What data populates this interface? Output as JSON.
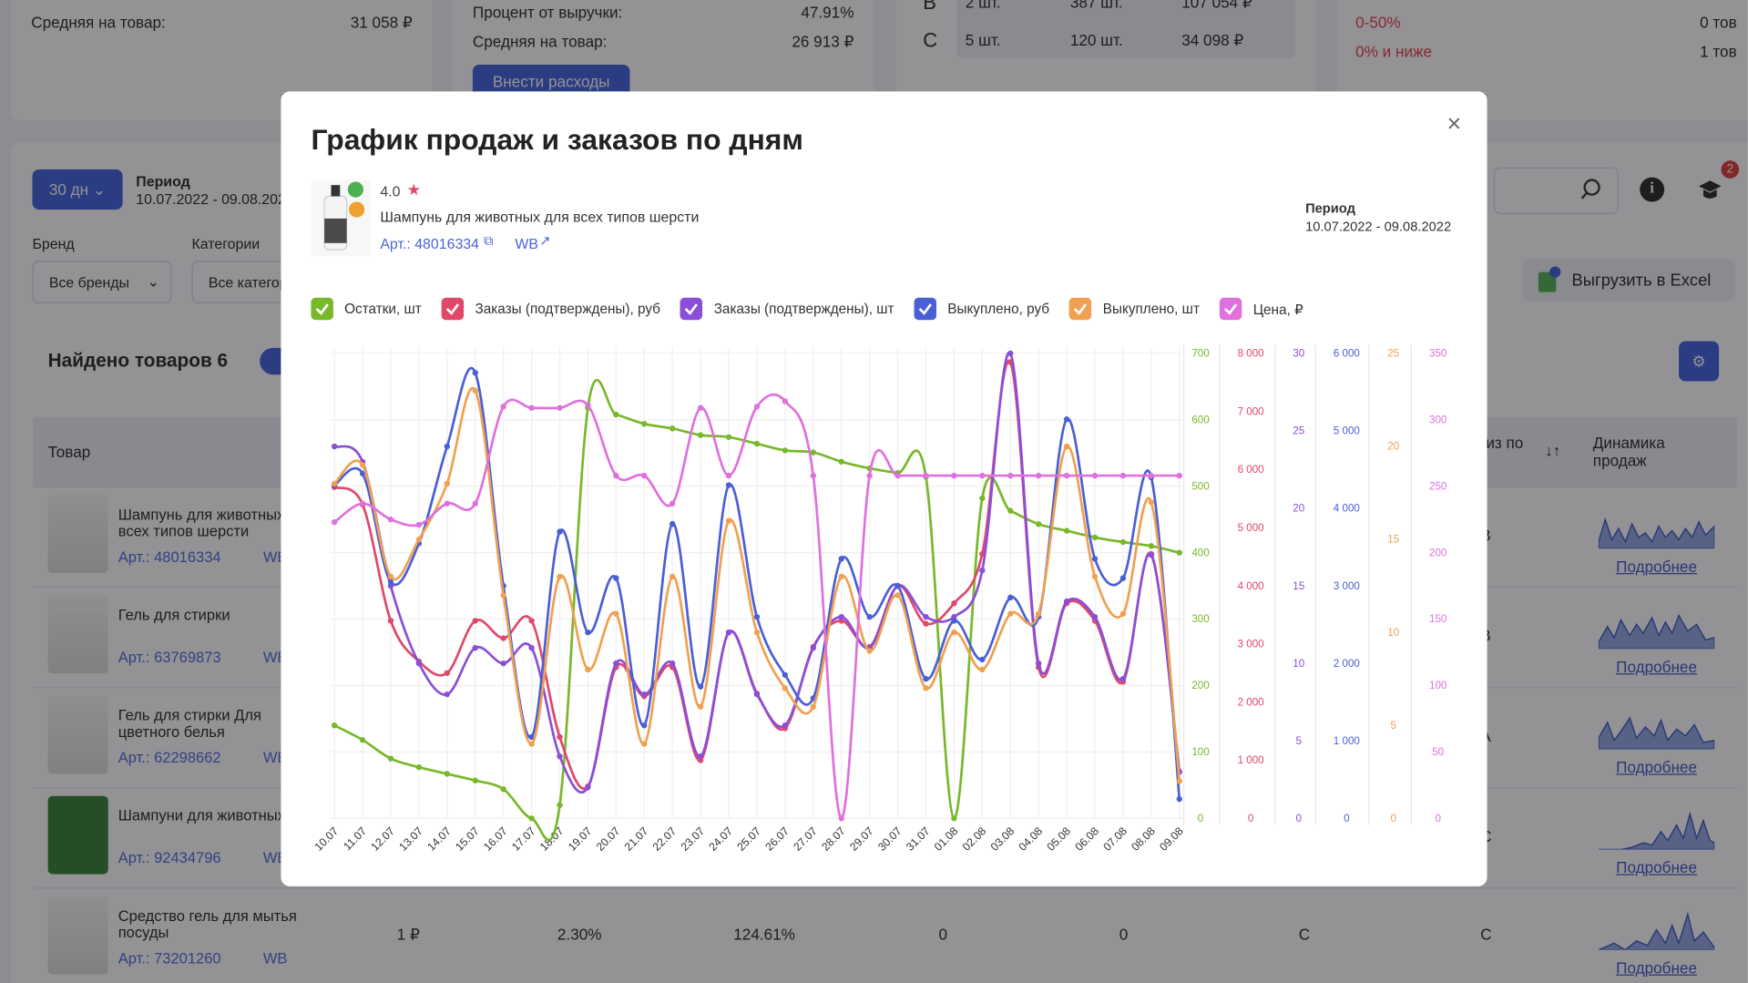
{
  "background": {
    "summary": [
      {
        "label": "Средняя на товар:",
        "value": "31 058 ₽"
      },
      {
        "label": "Процент от выручки:",
        "value": "47.91%"
      },
      {
        "label": "Средняя на товар:",
        "value": "26 913 ₽"
      }
    ],
    "expenses_button": "Внести расходы",
    "abc": [
      {
        "class": "B",
        "count": "2 шт.",
        "sold": "387 шт.",
        "revenue": "107 054 ₽"
      },
      {
        "class": "C",
        "count": "5 шт.",
        "sold": "120 шт.",
        "revenue": "34 098 ₽"
      }
    ],
    "margin": [
      {
        "label": "0-50%",
        "value": "0 тов"
      },
      {
        "label": "0% и ниже",
        "value": "1 тов"
      }
    ],
    "filters": {
      "days": "30 дн",
      "period_label": "Период",
      "period": "10.07.2022 - 09.08.2022",
      "brand_label": "Бренд",
      "brand": "Все бренды",
      "category_label": "Категории",
      "category": "Все категории"
    },
    "notifications": "2",
    "export_button": "Выгрузить в Excel",
    "found": "Найдено товаров 6",
    "table": {
      "headers": [
        "Товар",
        "из по",
        "Динамика продаж"
      ],
      "rows": [
        {
          "name": "Шампунь для животных для всех типов шерсти",
          "article": "Арт.: 48016334",
          "wb": "WB",
          "abc": "B",
          "details": "Подробнее"
        },
        {
          "name": "Гель для стирки",
          "article": "Арт.: 63769873",
          "wb": "WB",
          "abc": "B",
          "details": "Подробнее"
        },
        {
          "name": "Гель для стирки Для цветного белья",
          "article": "Арт.: 62298662",
          "wb": "WB",
          "abc": "A",
          "details": "Подробнее"
        },
        {
          "name": "Шампуни для животных",
          "article": "Арт.: 92434796",
          "wb": "WB",
          "abc": "C",
          "details": "Подробнее"
        },
        {
          "name": "Средство гель для мытья посуды",
          "article": "Арт.: 73201260",
          "wb": "WB",
          "details": "Подробнее",
          "cells": [
            "1 ₽",
            "2.30%",
            "124.61%",
            "0",
            "0",
            "C",
            "C"
          ]
        }
      ]
    }
  },
  "modal": {
    "title": "График продаж и заказов по дням",
    "close": "×",
    "rating": "4.0",
    "star": "★",
    "product": "Шампунь для животных для всех типов шерсти",
    "article": "Арт.: 48016334",
    "wb": "WB",
    "period_label": "Период",
    "period": "10.07.2022 - 09.08.2022"
  },
  "chart_data": {
    "type": "line",
    "grid": true,
    "categories": [
      "10.07",
      "11.07",
      "12.07",
      "13.07",
      "14.07",
      "15.07",
      "16.07",
      "17.07",
      "18.07",
      "19.07",
      "20.07",
      "21.07",
      "22.07",
      "23.07",
      "24.07",
      "25.07",
      "26.07",
      "27.07",
      "28.07",
      "29.07",
      "30.07",
      "31.07",
      "01.08",
      "02.08",
      "03.08",
      "04.08",
      "05.08",
      "06.08",
      "07.08",
      "08.08",
      "09.08"
    ],
    "series": [
      {
        "name": "Остатки, шт",
        "color": "#78b82a",
        "checked": true,
        "ylim": [
          0,
          700
        ],
        "yticks": [
          0,
          100,
          200,
          300,
          400,
          500,
          600,
          700
        ],
        "values": [
          140,
          118,
          90,
          77,
          67,
          57,
          44,
          0,
          20,
          618,
          608,
          594,
          587,
          577,
          574,
          564,
          554,
          551,
          537,
          527,
          520,
          514,
          0,
          482,
          463,
          443,
          433,
          423,
          416,
          410,
          400
        ]
      },
      {
        "name": "Заказы (подтверждены), руб",
        "color": "#e0486a",
        "checked": true,
        "ylim": [
          0,
          8000
        ],
        "yticks": [
          0,
          {
            "value": 1000,
            "label": "1 000"
          },
          {
            "value": 2000,
            "label": "2 000"
          },
          {
            "value": 3000,
            "label": "3 000"
          },
          {
            "value": 4000,
            "label": "4 000"
          },
          {
            "value": 5000,
            "label": "5 000"
          },
          {
            "value": 6000,
            "label": "6 000"
          },
          {
            "value": 7000,
            "label": "7 000"
          },
          {
            "value": 8000,
            "label": "8 000"
          }
        ],
        "values": [
          5700,
          5400,
          3400,
          2700,
          2500,
          3400,
          3100,
          3400,
          1400,
          550,
          2600,
          2100,
          2600,
          1000,
          3200,
          2150,
          1550,
          2950,
          3400,
          2950,
          4000,
          3350,
          3700,
          4550,
          7850,
          2600,
          3700,
          3400,
          2350,
          4550,
          800
        ]
      },
      {
        "name": "Заказы (подтверждены), шт",
        "color": "#8a4fd8",
        "checked": true,
        "ylim": [
          0,
          30
        ],
        "yticks": [
          0,
          5,
          10,
          15,
          20,
          25,
          30
        ],
        "values": [
          24,
          23,
          15,
          10,
          8,
          11,
          10,
          11,
          4,
          2,
          10,
          8,
          10,
          4,
          12,
          8,
          6,
          11,
          13,
          11,
          15,
          13,
          13,
          16,
          30,
          10,
          14,
          13,
          9,
          17,
          3
        ]
      },
      {
        "name": "Выкуплено, руб",
        "color": "#4a5fd6",
        "checked": true,
        "ylim": [
          0,
          6000
        ],
        "yticks": [
          0,
          {
            "value": 1000,
            "label": "1 000"
          },
          {
            "value": 2000,
            "label": "2 000"
          },
          {
            "value": 3000,
            "label": "3 000"
          },
          {
            "value": 4000,
            "label": "4 000"
          },
          {
            "value": 5000,
            "label": "5 000"
          },
          {
            "value": 6000,
            "label": "6 000"
          }
        ],
        "values": [
          4300,
          4450,
          3050,
          3550,
          4800,
          5750,
          3000,
          1050,
          3700,
          2400,
          3100,
          1200,
          3800,
          1700,
          4300,
          2600,
          1850,
          1550,
          3350,
          2600,
          3000,
          1800,
          2550,
          2050,
          2850,
          2600,
          5150,
          3350,
          3100,
          4400,
          250
        ]
      },
      {
        "name": "Выкуплено, шт",
        "color": "#f0a050",
        "checked": true,
        "ylim": [
          0,
          25
        ],
        "yticks": [
          0,
          5,
          10,
          15,
          20,
          25
        ],
        "values": [
          18,
          19,
          13,
          15,
          18,
          23,
          12,
          4,
          13,
          8,
          11,
          4,
          13,
          6,
          16,
          10,
          7,
          6,
          13,
          9,
          12,
          7,
          10,
          8,
          11,
          11,
          20,
          13,
          11,
          17,
          2
        ]
      },
      {
        "name": "Цена, ₽",
        "color": "#e070dc",
        "checked": true,
        "ylim": [
          0,
          350
        ],
        "yticks": [
          0,
          50,
          100,
          150,
          200,
          250,
          300,
          350
        ],
        "values": [
          223,
          237,
          225,
          221,
          237,
          237,
          310,
          309,
          309,
          311,
          258,
          258,
          237,
          309,
          258,
          310,
          314,
          258,
          0,
          258,
          258,
          258,
          258,
          258,
          258,
          258,
          258,
          258,
          258,
          258,
          258
        ]
      }
    ]
  }
}
